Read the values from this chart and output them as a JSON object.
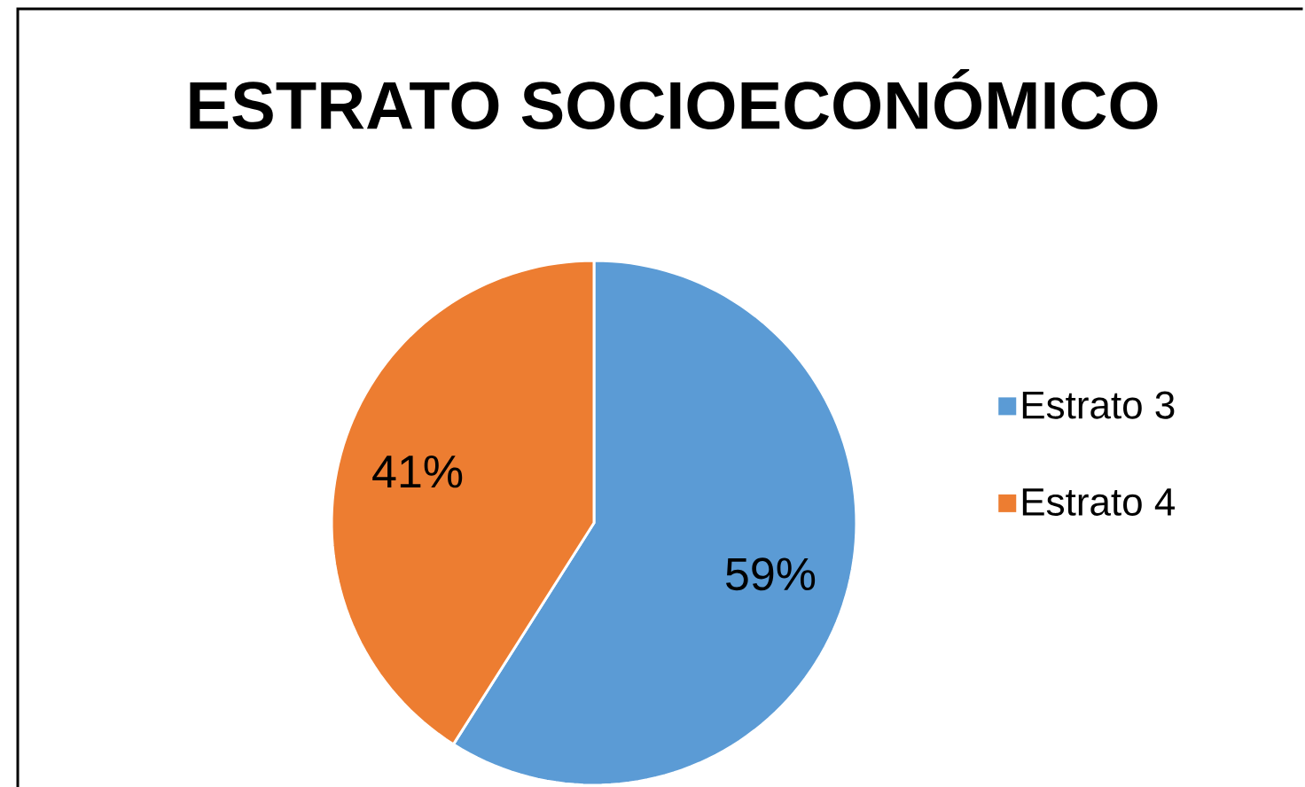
{
  "chart_data": {
    "type": "pie",
    "title": "ESTRATO SOCIOECONÓMICO",
    "categories": [
      "Estrato 3",
      "Estrato 4"
    ],
    "values": [
      59,
      41
    ],
    "colors": [
      "#5b9bd5",
      "#ed7d31"
    ],
    "value_labels": [
      "59%",
      "41%"
    ],
    "legend": "right"
  }
}
